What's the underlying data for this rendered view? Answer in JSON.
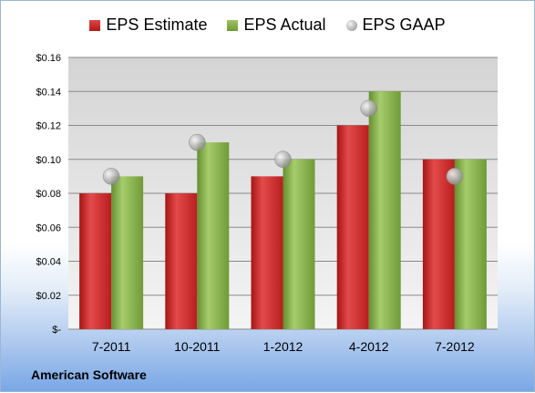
{
  "chart_data": {
    "type": "bar",
    "categories": [
      "7-2011",
      "10-2011",
      "1-2012",
      "4-2012",
      "7-2012"
    ],
    "series": [
      {
        "name": "EPS Estimate",
        "values": [
          0.08,
          0.08,
          0.09,
          0.12,
          0.1
        ],
        "color": "#c62828"
      },
      {
        "name": "EPS Actual",
        "values": [
          0.09,
          0.11,
          0.1,
          0.14,
          0.1
        ],
        "color": "#7ea63e"
      },
      {
        "name": "EPS GAAP",
        "values": [
          0.09,
          0.11,
          0.1,
          0.13,
          0.09
        ],
        "color": "#a0a0a0",
        "marker": "circle"
      }
    ],
    "ylim": [
      0,
      0.16
    ],
    "yticks": [
      0,
      0.02,
      0.04,
      0.06,
      0.08,
      0.1,
      0.12,
      0.14,
      0.16
    ],
    "ytick_labels": [
      "$-",
      "$0.02",
      "$0.04",
      "$0.06",
      "$0.08",
      "$0.10",
      "$0.12",
      "$0.14",
      "$0.16"
    ],
    "grid": true,
    "legend_position": "top"
  },
  "footer": {
    "company": "American Software"
  }
}
